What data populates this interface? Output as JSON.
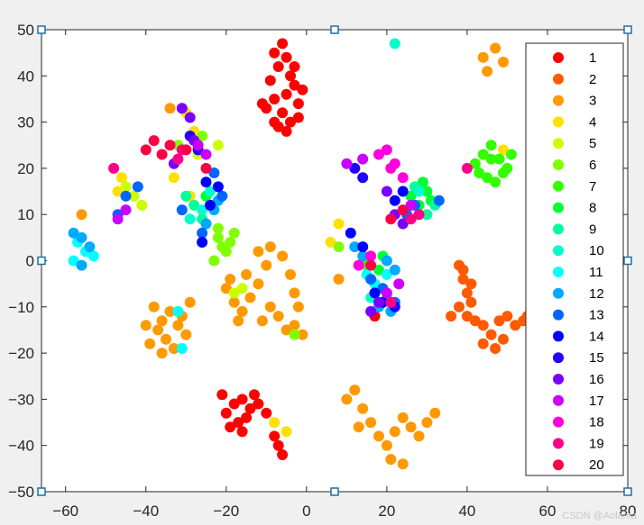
{
  "chart_data": {
    "type": "scatter",
    "title": "",
    "xlabel": "",
    "ylabel": "",
    "xlim": [
      -66,
      80
    ],
    "ylim": [
      -50,
      50
    ],
    "xticks": [
      -60,
      -40,
      -20,
      0,
      20,
      40,
      60,
      80
    ],
    "yticks": [
      50,
      40,
      30,
      20,
      10,
      0,
      -10,
      -20,
      -30,
      -40,
      -50
    ],
    "grid": false,
    "legend_position": "right",
    "series": [
      {
        "name": "1",
        "color": "#ff0000",
        "points": [
          [
            -8,
            45
          ],
          [
            -7,
            42
          ],
          [
            -5,
            44
          ],
          [
            -4,
            40
          ],
          [
            -3,
            38
          ],
          [
            -5,
            36
          ],
          [
            -8,
            35
          ],
          [
            -10,
            33
          ],
          [
            -6,
            32
          ],
          [
            -4,
            30
          ],
          [
            -7,
            29
          ],
          [
            -2,
            34
          ],
          [
            -1,
            37
          ],
          [
            -3,
            42
          ],
          [
            -6,
            47
          ],
          [
            -9,
            39
          ],
          [
            -11,
            34
          ],
          [
            -5,
            28
          ],
          [
            -2,
            31
          ],
          [
            -8,
            30
          ],
          [
            -20,
            -33
          ],
          [
            -18,
            -31
          ],
          [
            -16,
            -30
          ],
          [
            -14,
            -32
          ],
          [
            -17,
            -35
          ],
          [
            -19,
            -36
          ],
          [
            -15,
            -34
          ],
          [
            -12,
            -31
          ],
          [
            -10,
            -33
          ],
          [
            -21,
            -29
          ],
          [
            -13,
            -29
          ],
          [
            -16,
            -37
          ],
          [
            -7,
            -40
          ],
          [
            -6,
            -42
          ],
          [
            -8,
            -38
          ],
          [
            17,
            -12
          ]
        ]
      },
      {
        "name": "2",
        "color": "#ff5a00",
        "points": [
          [
            38,
            -1
          ],
          [
            39,
            -4
          ],
          [
            40,
            -7
          ],
          [
            41,
            -5
          ],
          [
            38,
            -10
          ],
          [
            40,
            -12
          ],
          [
            42,
            -13
          ],
          [
            44,
            -14
          ],
          [
            46,
            -16
          ],
          [
            48,
            -13
          ],
          [
            50,
            -12
          ],
          [
            52,
            -14
          ],
          [
            54,
            -13
          ],
          [
            44,
            -18
          ],
          [
            47,
            -19
          ],
          [
            49,
            -17
          ],
          [
            39,
            -2
          ],
          [
            41,
            -9
          ],
          [
            36,
            -12
          ],
          [
            55,
            -12
          ]
        ]
      },
      {
        "name": "3",
        "color": "#ff9900",
        "points": [
          [
            -38,
            -10
          ],
          [
            -36,
            -13
          ],
          [
            -34,
            -11
          ],
          [
            -32,
            -14
          ],
          [
            -35,
            -17
          ],
          [
            -37,
            -15
          ],
          [
            -39,
            -18
          ],
          [
            -33,
            -19
          ],
          [
            -31,
            -12
          ],
          [
            -29,
            -9
          ],
          [
            -40,
            -14
          ],
          [
            -36,
            -20
          ],
          [
            -30,
            -16
          ],
          [
            -20,
            -6
          ],
          [
            -18,
            -9
          ],
          [
            -16,
            -11
          ],
          [
            -14,
            -8
          ],
          [
            -12,
            -5
          ],
          [
            -15,
            -3
          ],
          [
            -11,
            -13
          ],
          [
            -9,
            -10
          ],
          [
            -7,
            -12
          ],
          [
            -5,
            -15
          ],
          [
            -3,
            -14
          ],
          [
            -10,
            -1
          ],
          [
            -12,
            2
          ],
          [
            -9,
            3
          ],
          [
            -6,
            1
          ],
          [
            -4,
            -3
          ],
          [
            -3,
            -7
          ],
          [
            -2,
            -10
          ],
          [
            -1,
            -16
          ],
          [
            -17,
            -13
          ],
          [
            -19,
            -4
          ],
          [
            10,
            -30
          ],
          [
            12,
            -28
          ],
          [
            14,
            -32
          ],
          [
            16,
            -35
          ],
          [
            18,
            -38
          ],
          [
            20,
            -40
          ],
          [
            22,
            -37
          ],
          [
            24,
            -34
          ],
          [
            26,
            -36
          ],
          [
            28,
            -38
          ],
          [
            30,
            -35
          ],
          [
            32,
            -33
          ],
          [
            13,
            -36
          ],
          [
            21,
            -43
          ],
          [
            24,
            -44
          ],
          [
            44,
            44
          ],
          [
            47,
            46
          ],
          [
            49,
            43
          ],
          [
            45,
            41
          ],
          [
            -56,
            10
          ],
          [
            -34,
            33
          ],
          [
            8,
            -4
          ]
        ]
      },
      {
        "name": "4",
        "color": "#ffe000",
        "points": [
          [
            -48,
            20
          ],
          [
            -46,
            18
          ],
          [
            -47,
            15
          ],
          [
            -30,
            32
          ],
          [
            -28,
            28
          ],
          [
            -33,
            18
          ],
          [
            -29,
            14
          ],
          [
            6,
            4
          ],
          [
            8,
            8
          ],
          [
            -8,
            -35
          ],
          [
            -5,
            -37
          ],
          [
            49,
            24
          ]
        ]
      },
      {
        "name": "5",
        "color": "#ccff00",
        "points": [
          [
            -45,
            16
          ],
          [
            -43,
            14
          ],
          [
            -41,
            12
          ],
          [
            -27,
            23
          ],
          [
            -22,
            25
          ],
          [
            -18,
            -7
          ],
          [
            -16,
            -6
          ]
        ]
      },
      {
        "name": "6",
        "color": "#80ff00",
        "points": [
          [
            -22,
            5
          ],
          [
            -21,
            3
          ],
          [
            -20,
            2
          ],
          [
            -23,
            0
          ],
          [
            -19,
            4
          ],
          [
            -22,
            7
          ],
          [
            -18,
            6
          ],
          [
            -32,
            25
          ],
          [
            -26,
            27
          ],
          [
            -3,
            -16
          ],
          [
            8,
            3
          ]
        ]
      },
      {
        "name": "7",
        "color": "#33ff00",
        "points": [
          [
            42,
            21
          ],
          [
            44,
            23
          ],
          [
            46,
            25
          ],
          [
            48,
            22
          ],
          [
            50,
            20
          ],
          [
            45,
            18
          ],
          [
            47,
            17
          ],
          [
            49,
            19
          ],
          [
            43,
            19
          ],
          [
            46,
            22
          ],
          [
            51,
            23
          ],
          [
            15,
            -1
          ]
        ]
      },
      {
        "name": "8",
        "color": "#00ff33",
        "points": [
          [
            26,
            14
          ],
          [
            28,
            12
          ],
          [
            30,
            15
          ],
          [
            29,
            17
          ],
          [
            31,
            13
          ],
          [
            19,
            1
          ],
          [
            18,
            -2
          ],
          [
            -25,
            14
          ]
        ]
      },
      {
        "name": "9",
        "color": "#00ff99",
        "points": [
          [
            32,
            12
          ],
          [
            30,
            10
          ],
          [
            27,
            16
          ],
          [
            -30,
            14
          ],
          [
            -28,
            12
          ],
          [
            -26,
            9
          ]
        ]
      },
      {
        "name": "10",
        "color": "#00ffcc",
        "points": [
          [
            -24,
            15
          ],
          [
            -26,
            11
          ],
          [
            -29,
            9
          ],
          [
            16,
            -8
          ],
          [
            18,
            -6
          ],
          [
            22,
            47
          ],
          [
            28,
            15
          ]
        ]
      },
      {
        "name": "11",
        "color": "#00ffff",
        "points": [
          [
            -57,
            4
          ],
          [
            -55,
            2
          ],
          [
            -58,
            0
          ],
          [
            -53,
            1
          ],
          [
            15,
            -3
          ],
          [
            17,
            -5
          ],
          [
            20,
            -3
          ],
          [
            -32,
            -11
          ],
          [
            -31,
            -19
          ],
          [
            20,
            -8
          ]
        ]
      },
      {
        "name": "12",
        "color": "#00aaff",
        "points": [
          [
            -58,
            6
          ],
          [
            -56,
            5
          ],
          [
            -54,
            3
          ],
          [
            -56,
            -1
          ],
          [
            -23,
            11
          ],
          [
            -22,
            13
          ],
          [
            -25,
            8
          ],
          [
            20,
            0
          ],
          [
            22,
            -2
          ],
          [
            12,
            3
          ],
          [
            14,
            1
          ],
          [
            18,
            -10
          ],
          [
            21,
            -11
          ]
        ]
      },
      {
        "name": "13",
        "color": "#0066ff",
        "points": [
          [
            -47,
            10
          ],
          [
            -45,
            14
          ],
          [
            -42,
            16
          ],
          [
            -23,
            19
          ],
          [
            -21,
            14
          ],
          [
            -26,
            6
          ],
          [
            -31,
            11
          ],
          [
            25,
            10
          ],
          [
            27,
            12
          ],
          [
            33,
            13
          ],
          [
            16,
            -4
          ],
          [
            19,
            -6
          ],
          [
            22,
            -9
          ]
        ]
      },
      {
        "name": "14",
        "color": "#0000ff",
        "points": [
          [
            -25,
            17
          ],
          [
            -24,
            12
          ],
          [
            -26,
            4
          ],
          [
            -22,
            16
          ],
          [
            22,
            13
          ],
          [
            24,
            15
          ],
          [
            17,
            -7
          ],
          [
            19,
            -9
          ],
          [
            14,
            3
          ],
          [
            11,
            6
          ]
        ]
      },
      {
        "name": "15",
        "color": "#2200ff",
        "points": [
          [
            -29,
            27
          ],
          [
            -27,
            24
          ],
          [
            12,
            20
          ],
          [
            14,
            18
          ],
          [
            22,
            -10
          ]
        ]
      },
      {
        "name": "16",
        "color": "#7a00ff",
        "points": [
          [
            -31,
            33
          ],
          [
            -29,
            31
          ],
          [
            -33,
            21
          ],
          [
            -28,
            26
          ],
          [
            20,
            15
          ],
          [
            22,
            10
          ],
          [
            24,
            8
          ],
          [
            16,
            -11
          ],
          [
            18,
            -9
          ]
        ]
      },
      {
        "name": "17",
        "color": "#cc00ff",
        "points": [
          [
            -47,
            9
          ],
          [
            -45,
            11
          ],
          [
            -27,
            25
          ],
          [
            -25,
            23
          ],
          [
            10,
            21
          ],
          [
            14,
            22
          ],
          [
            20,
            -7
          ],
          [
            23,
            -5
          ],
          [
            26,
            12
          ]
        ]
      },
      {
        "name": "18",
        "color": "#ff00dd",
        "points": [
          [
            18,
            23
          ],
          [
            20,
            24
          ],
          [
            22,
            21
          ],
          [
            24,
            18
          ],
          [
            21,
            20
          ],
          [
            13,
            -1
          ],
          [
            16,
            1
          ]
        ]
      },
      {
        "name": "19",
        "color": "#ff0088",
        "points": [
          [
            -48,
            20
          ],
          [
            -32,
            22
          ],
          [
            -31,
            24
          ],
          [
            26,
            9
          ],
          [
            28,
            10
          ],
          [
            21,
            -9
          ],
          [
            40,
            20
          ]
        ]
      },
      {
        "name": "20",
        "color": "#ff0044",
        "points": [
          [
            -40,
            24
          ],
          [
            -38,
            26
          ],
          [
            -36,
            23
          ],
          [
            -34,
            25
          ],
          [
            -30,
            24
          ],
          [
            -25,
            20
          ],
          [
            21,
            9
          ],
          [
            24,
            11
          ],
          [
            16,
            -1
          ]
        ]
      }
    ]
  }
}
